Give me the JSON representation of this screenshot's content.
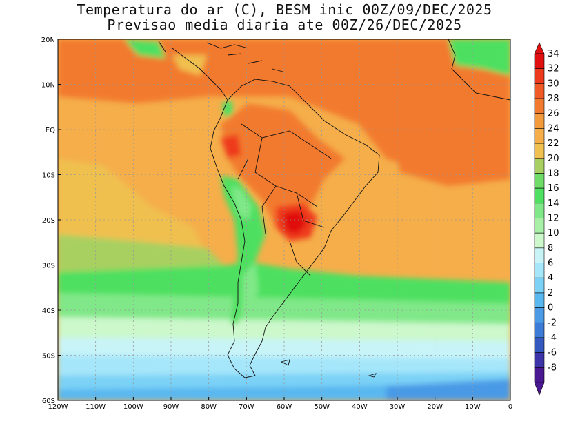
{
  "title": {
    "line1": "Temperatura do ar (C), BESM inic 00Z/09/DEC/2025",
    "line2": "Previsao media diaria ate 00Z/26/DEC/2025"
  },
  "axes": {
    "lon_labels": [
      "120W",
      "110W",
      "100W",
      "90W",
      "80W",
      "70W",
      "60W",
      "50W",
      "40W",
      "30W",
      "20W",
      "10W",
      "0"
    ],
    "lon_values": [
      -120,
      -110,
      -100,
      -90,
      -80,
      -70,
      -60,
      -50,
      -40,
      -30,
      -20,
      -10,
      0
    ],
    "lat_labels": [
      "20N",
      "10N",
      "EQ",
      "10S",
      "20S",
      "30S",
      "40S",
      "50S",
      "60S"
    ],
    "lat_values": [
      20,
      10,
      0,
      -10,
      -20,
      -30,
      -40,
      -50,
      -60
    ]
  },
  "colorbar": {
    "labels": [
      "34",
      "32",
      "30",
      "28",
      "26",
      "24",
      "22",
      "20",
      "18",
      "16",
      "14",
      "12",
      "10",
      "8",
      "6",
      "4",
      "2",
      "0",
      "-2",
      "-4",
      "-6",
      "-8"
    ],
    "colors": [
      "#e01010",
      "#ee3a1c",
      "#f05a26",
      "#f27a2e",
      "#f39a3c",
      "#f5ae4a",
      "#f0c050",
      "#a8d060",
      "#70dc68",
      "#4ee060",
      "#80e888",
      "#a8f0a8",
      "#ccf8cc",
      "#c8f4f8",
      "#a6e6fa",
      "#7cd2f6",
      "#5ab8f0",
      "#4a9ae6",
      "#3c7cd8",
      "#3458c0",
      "#3c34a8",
      "#4a1890"
    ]
  },
  "fields": {
    "colors": {
      "ocean_mid": "#f5ae4a",
      "warm": "#f27a2e",
      "hot": "#ee3a1c",
      "hottest": "#e01010",
      "mild": "#f0c050",
      "cool_green": "#a8d060",
      "green": "#4ee060",
      "light_green": "#80e888",
      "pale_green": "#ccf8cc",
      "pale_blue": "#c8f4f8",
      "light_blue": "#a6e6fa",
      "blue": "#7cd2f6",
      "deep_blue": "#5ab8f0",
      "deeper_blue": "#4a9ae6",
      "coast": "#111111",
      "grid": "#9a9a9a"
    }
  }
}
